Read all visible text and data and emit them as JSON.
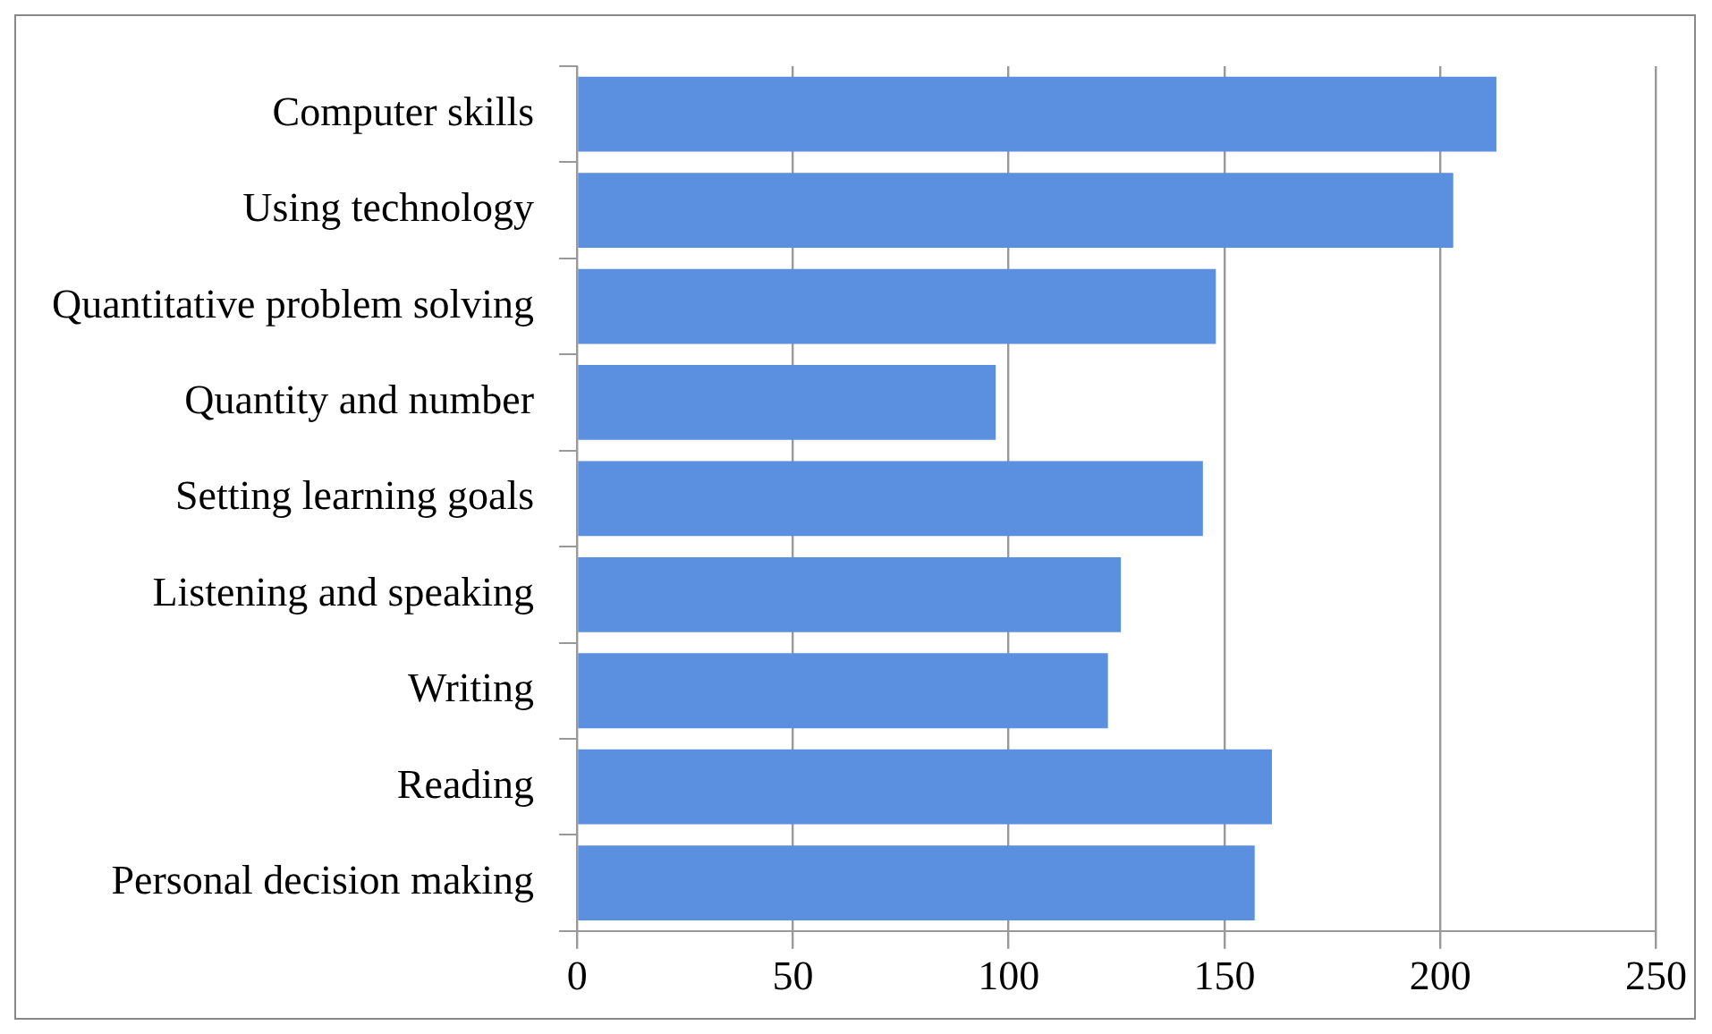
{
  "chart_data": {
    "type": "bar",
    "orientation": "horizontal",
    "categories": [
      "Computer skills",
      "Using technology",
      "Quantitative problem solving",
      "Quantity and number",
      "Setting learning goals",
      "Listening and speaking",
      "Writing",
      "Reading",
      "Personal decision making"
    ],
    "values": [
      213,
      203,
      148,
      97,
      145,
      126,
      123,
      161,
      157
    ],
    "color": "#5b8fe0",
    "xlim": [
      0,
      250
    ],
    "xticks": [
      0,
      50,
      100,
      150,
      200,
      250
    ],
    "grid": "x",
    "legend": false
  }
}
